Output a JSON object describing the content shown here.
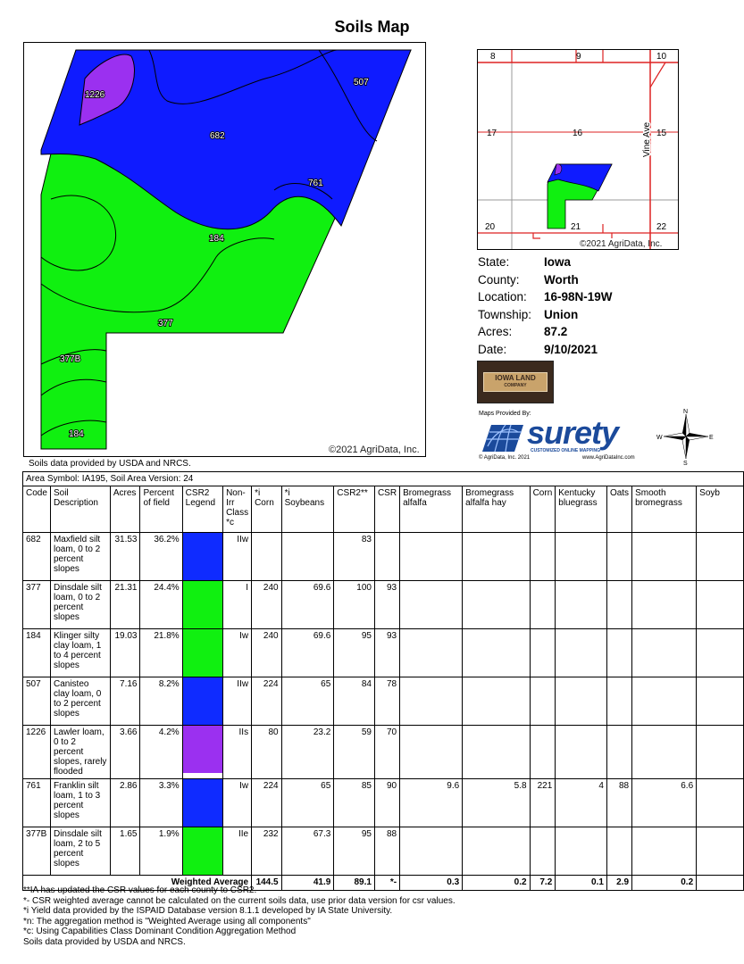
{
  "title": "Soils Map",
  "map": {
    "copyright": "©2021 AgriData, Inc.",
    "labels": [
      "1226",
      "507",
      "682",
      "761",
      "184",
      "377",
      "377B",
      "184"
    ],
    "colors": {
      "blue": "#0f1bff",
      "green": "#10f010",
      "purple": "#9b30f0"
    }
  },
  "location_map": {
    "sections": [
      "8",
      "9",
      "10",
      "17",
      "16",
      "15",
      "20",
      "21",
      "22"
    ],
    "road": "Vine Ave",
    "copyright": "©2021 AgriData, Inc."
  },
  "info": {
    "rows": [
      {
        "label": "State:",
        "value": "Iowa"
      },
      {
        "label": "County:",
        "value": "Worth"
      },
      {
        "label": "Location:",
        "value": "16-98N-19W"
      },
      {
        "label": "Township:",
        "value": "Union"
      },
      {
        "label": "Acres:",
        "value": "87.2"
      },
      {
        "label": "Date:",
        "value": "9/10/2021"
      }
    ]
  },
  "logos": {
    "iowa_land": "IOWA LAND",
    "iowa_land_sub": "COMPANY",
    "maps_provided_by": "Maps Provided By:",
    "surety": "surety",
    "surety_tag": "CUSTOMIZED ONLINE MAPPING",
    "surety_copy": "© AgriData, Inc. 2021",
    "surety_url": "www.AgriDataInc.com",
    "compass": {
      "n": "N",
      "s": "S",
      "e": "E",
      "w": "W"
    }
  },
  "provided_top": "Soils data provided by USDA and NRCS.",
  "table": {
    "area_symbol": "Area Symbol: IA195, Soil Area Version: 24",
    "headers": [
      "Code",
      "Soil Description",
      "Acres",
      "Percent of field",
      "CSR2 Legend",
      "Non-Irr Class *c",
      "*i Corn",
      "*i Soybeans",
      "CSR2**",
      "CSR",
      "Bromegrass alfalfa",
      "Bromegrass alfalfa hay",
      "Corn",
      "Kentucky bluegrass",
      "Oats",
      "Smooth bromegrass",
      "Soyb"
    ],
    "rows": [
      {
        "code": "682",
        "desc": "Maxfield silt loam, 0 to 2 percent slopes",
        "acres": "31.53",
        "pct": "36.2%",
        "color": "#0f2bff",
        "class": "IIw",
        "corn": "",
        "soy": "",
        "csr2": "83",
        "csr": "",
        "ba": "",
        "bah": "",
        "corn2": "",
        "kb": "",
        "oats": "",
        "sb": "",
        "soyb": ""
      },
      {
        "code": "377",
        "desc": "Dinsdale silt loam, 0 to 2 percent slopes",
        "acres": "21.31",
        "pct": "24.4%",
        "color": "#10f010",
        "class": "I",
        "corn": "240",
        "soy": "69.6",
        "csr2": "100",
        "csr": "93",
        "ba": "",
        "bah": "",
        "corn2": "",
        "kb": "",
        "oats": "",
        "sb": "",
        "soyb": ""
      },
      {
        "code": "184",
        "desc": "Klinger silty clay loam, 1 to 4 percent slopes",
        "acres": "19.03",
        "pct": "21.8%",
        "color": "#10f010",
        "class": "Iw",
        "corn": "240",
        "soy": "69.6",
        "csr2": "95",
        "csr": "93",
        "ba": "",
        "bah": "",
        "corn2": "",
        "kb": "",
        "oats": "",
        "sb": "",
        "soyb": ""
      },
      {
        "code": "507",
        "desc": "Canisteo clay loam, 0 to 2 percent slopes",
        "acres": "7.16",
        "pct": "8.2%",
        "color": "#0f2bff",
        "class": "IIw",
        "corn": "224",
        "soy": "65",
        "csr2": "84",
        "csr": "78",
        "ba": "",
        "bah": "",
        "corn2": "",
        "kb": "",
        "oats": "",
        "sb": "",
        "soyb": ""
      },
      {
        "code": "1226",
        "desc": "Lawler loam, 0 to 2 percent slopes, rarely flooded",
        "acres": "3.66",
        "pct": "4.2%",
        "color": "#9b30f0",
        "class": "IIs",
        "corn": "80",
        "soy": "23.2",
        "csr2": "59",
        "csr": "70",
        "ba": "",
        "bah": "",
        "corn2": "",
        "kb": "",
        "oats": "",
        "sb": "",
        "soyb": ""
      },
      {
        "code": "761",
        "desc": "Franklin silt loam, 1 to 3 percent slopes",
        "acres": "2.86",
        "pct": "3.3%",
        "color": "#0f2bff",
        "class": "Iw",
        "corn": "224",
        "soy": "65",
        "csr2": "85",
        "csr": "90",
        "ba": "9.6",
        "bah": "5.8",
        "corn2": "221",
        "kb": "4",
        "oats": "88",
        "sb": "6.6",
        "soyb": ""
      },
      {
        "code": "377B",
        "desc": "Dinsdale silt loam, 2 to 5 percent slopes",
        "acres": "1.65",
        "pct": "1.9%",
        "color": "#10f010",
        "class": "IIe",
        "corn": "232",
        "soy": "67.3",
        "csr2": "95",
        "csr": "88",
        "ba": "",
        "bah": "",
        "corn2": "",
        "kb": "",
        "oats": "",
        "sb": "",
        "soyb": ""
      }
    ],
    "weighted": {
      "label": "Weighted Average",
      "corn": "144.5",
      "soy": "41.9",
      "csr2": "89.1",
      "csr": "*-",
      "ba": "0.3",
      "bah": "0.2",
      "corn2": "7.2",
      "kb": "0.1",
      "oats": "2.9",
      "sb": "0.2"
    }
  },
  "notes": [
    "**IA has updated the CSR values for each county to CSR2.",
    "*- CSR weighted average cannot be calculated on the current soils data, use prior data version for csr values.",
    "*i Yield data provided by the ISPAID Database version 8.1.1 developed by IA State University.",
    "*n: The aggregation method is \"Weighted Average using all components\"",
    "*c: Using Capabilities Class Dominant Condition Aggregation Method",
    "Soils data provided by USDA and NRCS."
  ]
}
